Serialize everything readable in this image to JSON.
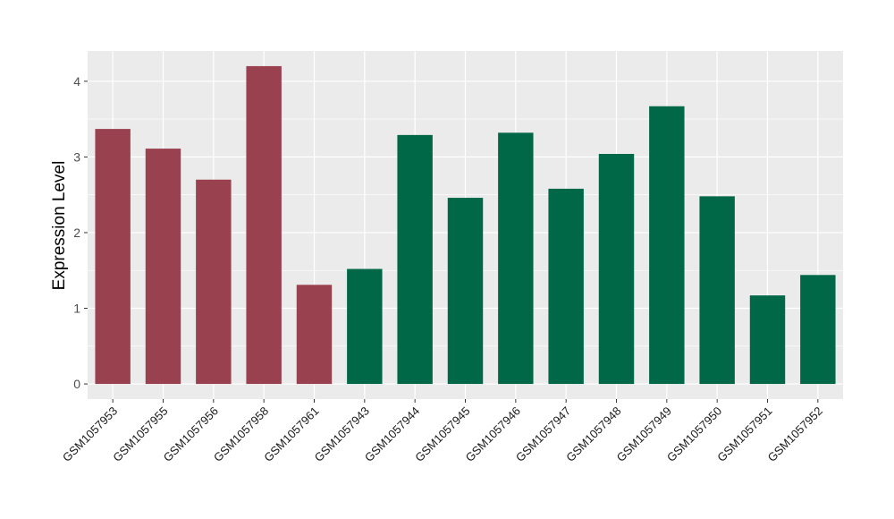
{
  "chart_data": {
    "type": "bar",
    "title": "",
    "xlabel": "",
    "ylabel": "Expression Level",
    "ylim": [
      -0.2,
      4.4
    ],
    "yticks": [
      0,
      1,
      2,
      3,
      4
    ],
    "grid": true,
    "legend": "none",
    "categories": [
      "GSM1057953",
      "GSM1057955",
      "GSM1057956",
      "GSM1057958",
      "GSM1057961",
      "GSM1057943",
      "GSM1057944",
      "GSM1057945",
      "GSM1057946",
      "GSM1057947",
      "GSM1057948",
      "GSM1057949",
      "GSM1057950",
      "GSM1057951",
      "GSM1057952"
    ],
    "values": [
      3.37,
      3.11,
      2.7,
      4.2,
      1.31,
      1.52,
      3.29,
      2.46,
      3.32,
      2.58,
      3.04,
      3.67,
      2.48,
      1.17,
      1.44
    ],
    "group_colors": [
      "#9a4150",
      "#9a4150",
      "#9a4150",
      "#9a4150",
      "#9a4150",
      "#006847",
      "#006847",
      "#006847",
      "#006847",
      "#006847",
      "#006847",
      "#006847",
      "#006847",
      "#006847",
      "#006847"
    ],
    "panel_background": "#ebebeb",
    "gridline_color": "#ffffff"
  }
}
